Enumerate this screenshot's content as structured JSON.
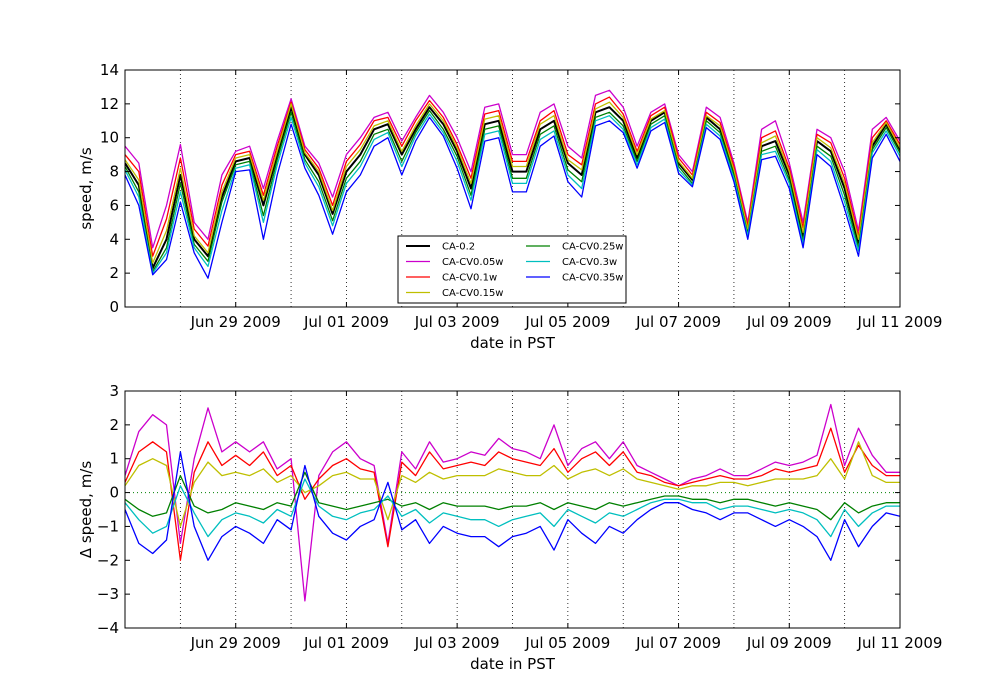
{
  "figure": {
    "background": "#ffffff"
  },
  "chart_data": [
    {
      "type": "line",
      "title": "",
      "xlabel": "date in PST",
      "ylabel": "speed, m/s",
      "x_start": "2009-06-27T00:00",
      "x_end": "2009-07-11T00:00",
      "x_step_hours": 6,
      "x_tick_labels": [
        "Jun 29 2009",
        "Jul 01 2009",
        "Jul 03 2009",
        "Jul 05 2009",
        "Jul 07 2009",
        "Jul 09 2009",
        "Jul 11 2009"
      ],
      "x_tick_dates": [
        "2009-06-29",
        "2009-07-01",
        "2009-07-03",
        "2009-07-05",
        "2009-07-07",
        "2009-07-09",
        "2009-07-11"
      ],
      "daily_gridlines": "dotted",
      "ylim": [
        0,
        14
      ],
      "y_ticks": [
        0,
        2,
        4,
        6,
        8,
        10,
        12,
        14
      ],
      "legend": {
        "placement": "lower-center",
        "columns": 2
      },
      "series": [
        {
          "name": "CA-0.2",
          "color": "#000000",
          "width": 2,
          "values": [
            8.5,
            7.2,
            2.3,
            4.0,
            7.8,
            4.0,
            3.0,
            6.5,
            8.6,
            8.8,
            6.0,
            9.0,
            11.8,
            9.0,
            7.8,
            5.5,
            8.0,
            9.0,
            10.5,
            10.8,
            9.0,
            10.5,
            11.8,
            10.8,
            9.2,
            7.0,
            10.8,
            11.0,
            8.0,
            8.0,
            10.5,
            11.0,
            8.5,
            7.8,
            11.5,
            11.8,
            11.0,
            8.8,
            11.0,
            11.5,
            8.5,
            7.5,
            11.2,
            10.5,
            8.0,
            4.5,
            9.5,
            9.8,
            7.8,
            4.2,
            9.8,
            9.2,
            7.0,
            3.8,
            9.5,
            10.8,
            9.3,
            5.5,
            8.8,
            9.0
          ]
        },
        {
          "name": "CA-CV0.05w",
          "color": "#cc00cc",
          "width": 1.3,
          "values": [
            9.5,
            8.5,
            3.5,
            6.0,
            9.6,
            5.0,
            4.0,
            7.8,
            9.2,
            9.5,
            7.0,
            9.8,
            12.3,
            9.5,
            8.5,
            6.5,
            9.0,
            10.0,
            11.2,
            11.5,
            9.8,
            11.2,
            12.5,
            11.5,
            10.0,
            8.0,
            11.8,
            12.0,
            9.0,
            9.0,
            11.5,
            12.0,
            9.5,
            8.8,
            12.5,
            12.8,
            11.8,
            9.5,
            11.5,
            12.0,
            9.0,
            8.0,
            11.8,
            11.2,
            8.5,
            5.0,
            10.5,
            11.0,
            8.5,
            5.0,
            10.5,
            10.0,
            8.0,
            4.5,
            10.5,
            11.2,
            9.8,
            6.5,
            9.5,
            9.5
          ]
        },
        {
          "name": "CA-CV0.1w",
          "color": "#ff0000",
          "width": 1.3,
          "values": [
            9.0,
            8.0,
            3.0,
            5.2,
            8.8,
            4.6,
            3.6,
            7.2,
            9.0,
            9.2,
            6.6,
            9.5,
            12.1,
            9.3,
            8.2,
            6.0,
            8.6,
            9.6,
            11.0,
            11.2,
            9.5,
            11.0,
            12.2,
            11.2,
            9.6,
            7.6,
            11.4,
            11.6,
            8.6,
            8.6,
            11.0,
            11.6,
            9.0,
            8.4,
            12.0,
            12.4,
            11.4,
            9.2,
            11.3,
            11.8,
            8.8,
            7.8,
            11.5,
            10.9,
            8.3,
            4.8,
            10.0,
            10.4,
            8.2,
            4.7,
            10.2,
            9.7,
            7.6,
            4.2,
            10.0,
            11.0,
            9.6,
            6.0,
            9.2,
            9.3
          ]
        },
        {
          "name": "CA-CV0.15w",
          "color": "#bfbf00",
          "width": 1.3,
          "values": [
            8.7,
            7.5,
            2.6,
            4.5,
            8.2,
            4.2,
            3.2,
            6.8,
            8.8,
            9.0,
            6.3,
            9.2,
            12.0,
            9.1,
            8.0,
            5.7,
            8.3,
            9.3,
            10.7,
            11.0,
            9.2,
            10.7,
            12.0,
            11.0,
            9.4,
            7.3,
            11.1,
            11.3,
            8.3,
            8.3,
            10.8,
            11.3,
            8.7,
            8.1,
            11.7,
            12.1,
            11.2,
            9.0,
            11.1,
            11.6,
            8.6,
            7.6,
            11.3,
            10.7,
            8.1,
            4.6,
            9.7,
            10.1,
            8.0,
            4.4,
            10.0,
            9.4,
            7.3,
            4.0,
            9.7,
            10.9,
            9.4,
            5.7,
            9.0,
            9.1
          ]
        },
        {
          "name": "CA-CV0.25w",
          "color": "#008000",
          "width": 1.3,
          "values": [
            8.3,
            6.8,
            2.1,
            3.5,
            7.3,
            3.7,
            2.7,
            6.2,
            8.4,
            8.6,
            5.4,
            8.7,
            11.5,
            8.7,
            7.4,
            5.1,
            7.6,
            8.6,
            10.2,
            10.5,
            8.6,
            10.3,
            11.6,
            10.5,
            8.9,
            6.6,
            10.5,
            10.7,
            7.6,
            7.6,
            10.2,
            10.7,
            8.1,
            7.4,
            11.2,
            11.5,
            10.7,
            8.6,
            10.8,
            11.3,
            8.3,
            7.3,
            11.0,
            10.3,
            7.8,
            4.3,
            9.2,
            9.5,
            7.5,
            3.9,
            9.5,
            8.9,
            6.6,
            3.5,
            9.3,
            10.6,
            9.1,
            5.2,
            8.5,
            8.8
          ]
        },
        {
          "name": "CA-CV0.3w",
          "color": "#00bfbf",
          "width": 1.3,
          "values": [
            8.1,
            6.5,
            2.0,
            3.2,
            6.8,
            3.5,
            2.4,
            5.7,
            8.2,
            8.4,
            5.0,
            8.4,
            11.2,
            8.5,
            7.1,
            4.8,
            7.3,
            8.3,
            9.9,
            10.3,
            8.3,
            10.1,
            11.4,
            10.3,
            8.6,
            6.3,
            10.2,
            10.4,
            7.3,
            7.3,
            9.9,
            10.4,
            7.8,
            7.0,
            11.0,
            11.3,
            10.5,
            8.4,
            10.6,
            11.1,
            8.1,
            7.2,
            10.8,
            10.1,
            7.6,
            4.2,
            9.0,
            9.2,
            7.3,
            3.7,
            9.3,
            8.6,
            6.2,
            3.3,
            9.1,
            10.4,
            8.9,
            4.9,
            8.2,
            8.6
          ]
        },
        {
          "name": "CA-CV0.35w",
          "color": "#0000ff",
          "width": 1.3,
          "values": [
            7.8,
            6.0,
            1.9,
            2.8,
            6.2,
            3.2,
            1.7,
            5.0,
            8.0,
            8.1,
            4.0,
            7.8,
            10.8,
            8.2,
            6.6,
            4.3,
            6.8,
            7.8,
            9.5,
            10.0,
            7.8,
            9.8,
            11.2,
            10.1,
            8.2,
            5.8,
            9.8,
            10.0,
            6.8,
            6.8,
            9.5,
            10.1,
            7.4,
            6.5,
            10.7,
            11.0,
            10.3,
            8.2,
            10.4,
            10.9,
            7.9,
            7.1,
            10.6,
            9.9,
            7.4,
            4.0,
            8.7,
            8.9,
            7.0,
            3.5,
            9.0,
            8.3,
            5.8,
            3.0,
            8.8,
            10.2,
            8.6,
            4.4,
            7.8,
            8.4
          ]
        }
      ]
    },
    {
      "type": "line",
      "title": "",
      "xlabel": "date in PST",
      "ylabel": "Δ speed, m/s",
      "x_start": "2009-06-27T00:00",
      "x_end": "2009-07-11T00:00",
      "x_step_hours": 6,
      "x_tick_labels": [
        "Jun 29 2009",
        "Jul 01 2009",
        "Jul 03 2009",
        "Jul 05 2009",
        "Jul 07 2009",
        "Jul 09 2009",
        "Jul 11 2009"
      ],
      "x_tick_dates": [
        "2009-06-29",
        "2009-07-01",
        "2009-07-03",
        "2009-07-05",
        "2009-07-07",
        "2009-07-09",
        "2009-07-11"
      ],
      "daily_gridlines": "dotted",
      "zero_line": "dotted-green",
      "ylim": [
        -4,
        3
      ],
      "y_ticks": [
        -4,
        -3,
        -2,
        -1,
        0,
        1,
        2,
        3
      ],
      "series": [
        {
          "name": "CA-CV0.05w",
          "color": "#cc00cc",
          "width": 1.3,
          "values": [
            0.5,
            1.8,
            2.3,
            2.0,
            -1.5,
            1.0,
            2.5,
            1.2,
            1.5,
            1.2,
            1.5,
            0.7,
            1.0,
            -3.2,
            0.5,
            1.2,
            1.5,
            1.0,
            0.8,
            -1.5,
            1.2,
            0.7,
            1.5,
            0.9,
            1.0,
            1.2,
            1.1,
            1.6,
            1.3,
            1.2,
            1.0,
            2.0,
            0.8,
            1.3,
            1.5,
            1.0,
            1.5,
            0.8,
            0.6,
            0.4,
            0.2,
            0.4,
            0.5,
            0.7,
            0.5,
            0.5,
            0.7,
            0.9,
            0.8,
            0.9,
            1.1,
            2.6,
            0.8,
            1.9,
            1.1,
            0.6,
            0.6,
            1.5,
            1.8,
            0.5
          ]
        },
        {
          "name": "CA-CV0.1w",
          "color": "#ff0000",
          "width": 1.3,
          "values": [
            0.3,
            1.2,
            1.5,
            1.2,
            -2.0,
            0.6,
            1.5,
            0.8,
            1.1,
            0.8,
            1.2,
            0.5,
            0.8,
            -0.2,
            0.4,
            0.8,
            1.0,
            0.7,
            0.6,
            -1.6,
            0.9,
            0.5,
            1.2,
            0.7,
            0.8,
            0.9,
            0.8,
            1.2,
            1.0,
            0.9,
            0.8,
            1.3,
            0.6,
            1.0,
            1.2,
            0.8,
            1.2,
            0.6,
            0.5,
            0.3,
            0.2,
            0.3,
            0.4,
            0.5,
            0.4,
            0.4,
            0.5,
            0.7,
            0.6,
            0.7,
            0.8,
            1.9,
            0.6,
            1.4,
            0.8,
            0.5,
            0.5,
            1.1,
            1.3,
            0.4
          ]
        },
        {
          "name": "CA-CV0.15w",
          "color": "#bfbf00",
          "width": 1.3,
          "values": [
            0.2,
            0.8,
            1.0,
            0.8,
            -1.0,
            0.3,
            0.9,
            0.5,
            0.6,
            0.5,
            0.7,
            0.3,
            0.5,
            0.0,
            0.2,
            0.5,
            0.6,
            0.4,
            0.4,
            -0.8,
            0.5,
            0.3,
            0.6,
            0.4,
            0.5,
            0.5,
            0.5,
            0.7,
            0.6,
            0.5,
            0.5,
            0.8,
            0.4,
            0.6,
            0.7,
            0.5,
            0.7,
            0.4,
            0.3,
            0.2,
            0.1,
            0.2,
            0.2,
            0.3,
            0.3,
            0.2,
            0.3,
            0.4,
            0.4,
            0.4,
            0.5,
            1.0,
            0.4,
            1.5,
            0.5,
            0.3,
            0.3,
            0.6,
            0.8,
            0.3
          ]
        },
        {
          "name": "CA-CV0.25w",
          "color": "#008000",
          "width": 1.3,
          "values": [
            -0.2,
            -0.5,
            -0.7,
            -0.6,
            0.5,
            -0.4,
            -0.6,
            -0.5,
            -0.3,
            -0.4,
            -0.5,
            -0.3,
            -0.4,
            0.6,
            -0.3,
            -0.4,
            -0.5,
            -0.4,
            -0.3,
            -0.2,
            -0.4,
            -0.3,
            -0.5,
            -0.3,
            -0.4,
            -0.4,
            -0.4,
            -0.5,
            -0.4,
            -0.4,
            -0.3,
            -0.5,
            -0.3,
            -0.4,
            -0.5,
            -0.3,
            -0.4,
            -0.3,
            -0.2,
            -0.1,
            -0.1,
            -0.2,
            -0.2,
            -0.3,
            -0.2,
            -0.2,
            -0.3,
            -0.4,
            -0.3,
            -0.4,
            -0.5,
            -0.8,
            -0.3,
            -0.6,
            -0.4,
            -0.3,
            -0.3,
            -0.5,
            -0.4,
            -0.2
          ]
        },
        {
          "name": "CA-CV0.3w",
          "color": "#00bfbf",
          "width": 1.3,
          "values": [
            -0.3,
            -0.8,
            -1.2,
            -1.0,
            0.2,
            -0.6,
            -1.3,
            -0.8,
            -0.6,
            -0.7,
            -0.9,
            -0.5,
            -0.7,
            0.4,
            -0.4,
            -0.7,
            -0.8,
            -0.6,
            -0.5,
            -0.1,
            -0.7,
            -0.5,
            -0.9,
            -0.6,
            -0.7,
            -0.8,
            -0.8,
            -1.0,
            -0.8,
            -0.7,
            -0.6,
            -1.0,
            -0.5,
            -0.7,
            -0.9,
            -0.6,
            -0.7,
            -0.5,
            -0.3,
            -0.2,
            -0.2,
            -0.3,
            -0.3,
            -0.5,
            -0.4,
            -0.4,
            -0.5,
            -0.6,
            -0.5,
            -0.6,
            -0.8,
            -1.3,
            -0.5,
            -1.0,
            -0.6,
            -0.4,
            -0.4,
            -0.8,
            -0.7,
            -0.3
          ]
        },
        {
          "name": "CA-CV0.35w",
          "color": "#0000ff",
          "width": 1.3,
          "values": [
            -0.5,
            -1.5,
            -1.8,
            -1.4,
            1.2,
            -1.0,
            -2.0,
            -1.3,
            -1.0,
            -1.2,
            -1.5,
            -0.8,
            -1.1,
            0.8,
            -0.7,
            -1.2,
            -1.4,
            -1.0,
            -0.8,
            0.3,
            -1.1,
            -0.8,
            -1.5,
            -1.0,
            -1.2,
            -1.3,
            -1.3,
            -1.6,
            -1.3,
            -1.2,
            -1.0,
            -1.7,
            -0.8,
            -1.2,
            -1.5,
            -1.0,
            -1.2,
            -0.8,
            -0.5,
            -0.3,
            -0.3,
            -0.5,
            -0.6,
            -0.8,
            -0.6,
            -0.6,
            -0.8,
            -1.0,
            -0.8,
            -1.0,
            -1.3,
            -2.0,
            -0.8,
            -1.6,
            -1.0,
            -0.6,
            -0.7,
            -1.4,
            -1.2,
            -0.5
          ]
        }
      ]
    }
  ]
}
